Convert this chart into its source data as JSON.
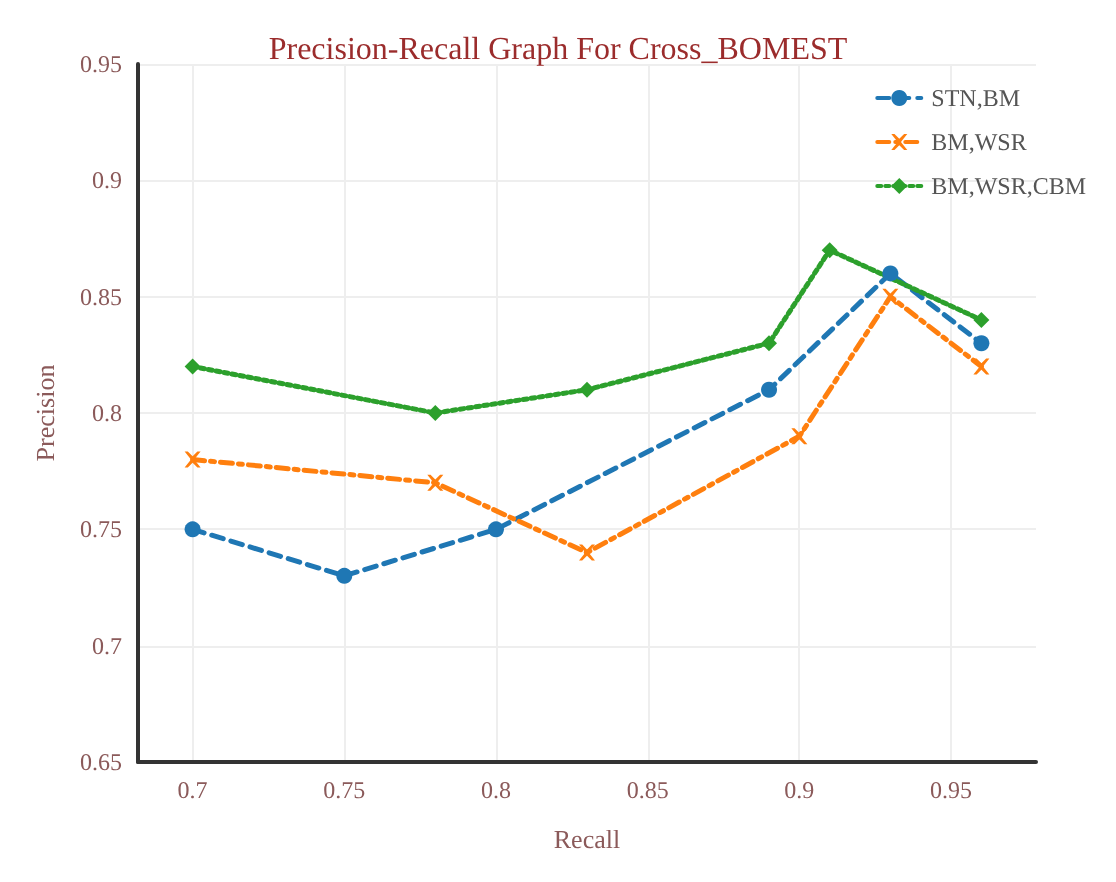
{
  "chart_data": {
    "type": "line",
    "title": "Precision-Recall Graph For Cross_BOMEST",
    "xlabel": "Recall",
    "ylabel": "Precision",
    "xlim": [
      0.682,
      0.978
    ],
    "xticks": [
      0.7,
      0.75,
      0.8,
      0.85,
      0.9,
      0.95
    ],
    "ylim": [
      0.65,
      0.95
    ],
    "yticks": [
      0.65,
      0.7,
      0.75,
      0.8,
      0.85,
      0.9,
      0.95
    ],
    "grid": true,
    "legend": "top right",
    "series": [
      {
        "name": "STN,BM",
        "color": "#1f77b4",
        "marker": "circle",
        "line_style": "dashed",
        "x": [
          0.7,
          0.75,
          0.8,
          0.89,
          0.93,
          0.96
        ],
        "values": [
          0.75,
          0.73,
          0.75,
          0.81,
          0.86,
          0.83
        ]
      },
      {
        "name": "BM,WSR",
        "color": "#ff7f0e",
        "marker": "cross",
        "line_style": "dashdot",
        "x": [
          0.7,
          0.78,
          0.83,
          0.9,
          0.93,
          0.96
        ],
        "values": [
          0.78,
          0.77,
          0.74,
          0.79,
          0.85,
          0.82
        ]
      },
      {
        "name": "BM,WSR,CBM",
        "color": "#2ca02c",
        "marker": "diamond",
        "line_style": "dotted",
        "x": [
          0.7,
          0.78,
          0.83,
          0.89,
          0.91,
          0.96
        ],
        "values": [
          0.82,
          0.8,
          0.81,
          0.83,
          0.87,
          0.84
        ]
      }
    ]
  }
}
